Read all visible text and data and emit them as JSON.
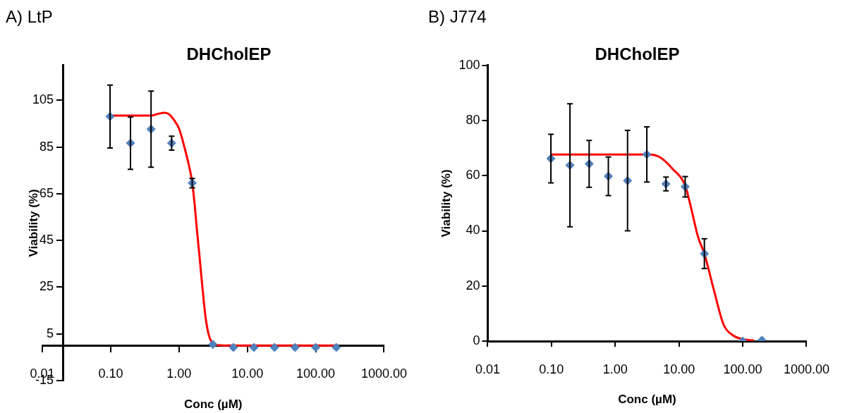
{
  "chart_data": [
    {
      "type": "scatter",
      "subtitle": "A) LtP",
      "title": "DHCholEP",
      "xlabel": "Conc (µM)",
      "ylabel": "Viability (%)",
      "log": "x",
      "grid": false,
      "legend": false,
      "xlim": [
        0.01,
        1000
      ],
      "xticks": [
        {
          "value": 0.01,
          "label": "0.01"
        },
        {
          "value": 0.1,
          "label": "0.10"
        },
        {
          "value": 1,
          "label": "1.00"
        },
        {
          "value": 10,
          "label": "10.00"
        },
        {
          "value": 100,
          "label": "100.00"
        },
        {
          "value": 1000,
          "label": "1000.00"
        }
      ],
      "ylim": [
        -15,
        120
      ],
      "yticks": [
        -15,
        5,
        25,
        45,
        65,
        85,
        105
      ],
      "x": [
        0.098,
        0.195,
        0.39,
        0.78,
        1.56,
        3.13,
        6.25,
        12.5,
        25,
        50,
        100,
        200
      ],
      "series": [
        {
          "color": "#4f81bd",
          "marker": "diamond",
          "values": [
            98.1,
            86.7,
            92.7,
            86.7,
            69.6,
            0.5,
            -0.8,
            -0.8,
            -0.8,
            -0.8,
            -0.8,
            -0.8
          ],
          "errors": [
            13.5,
            11.2,
            16.3,
            3,
            2,
            null,
            null,
            null,
            null,
            null,
            null,
            null
          ]
        },
        {
          "type": "line",
          "color": "#ff0000",
          "marker": "none",
          "x": [
            0.098,
            0.39,
            0.5,
            0.62,
            0.72,
            0.85,
            1.0,
            1.2,
            1.4,
            1.56,
            1.7,
            1.85,
            2.0,
            2.2,
            2.45,
            2.7,
            3.0,
            3.5,
            5,
            200
          ],
          "values": [
            98.5,
            98.5,
            99.3,
            99.7,
            99,
            96.5,
            93,
            85,
            77,
            70,
            60,
            48,
            38,
            25,
            12,
            5,
            1.5,
            0.3,
            0,
            0
          ]
        }
      ]
    },
    {
      "type": "scatter",
      "subtitle": "B) J774",
      "title": "DHCholEP",
      "xlabel": "Conc (µM)",
      "ylabel": "Viability (%)",
      "log": "x",
      "grid": false,
      "legend": false,
      "xlim": [
        0.01,
        1000
      ],
      "xticks": [
        {
          "value": 0.01,
          "label": "0.01"
        },
        {
          "value": 0.1,
          "label": "0.10"
        },
        {
          "value": 1,
          "label": "1.00"
        },
        {
          "value": 10,
          "label": "10.00"
        },
        {
          "value": 100,
          "label": "100.00"
        },
        {
          "value": 1000,
          "label": "1000.00"
        }
      ],
      "ylim": [
        0,
        100
      ],
      "yticks": [
        0,
        20,
        40,
        60,
        80,
        100
      ],
      "x": [
        0.098,
        0.195,
        0.39,
        0.78,
        1.56,
        3.13,
        6.25,
        12.5,
        25,
        50,
        100,
        200
      ],
      "series": [
        {
          "color": "#4f81bd",
          "marker": "diamond",
          "values": [
            66.2,
            63.8,
            64.3,
            59.8,
            58.2,
            67.7,
            57.0,
            56.0,
            31.7,
            null,
            0,
            0.3
          ],
          "errors": [
            8.8,
            22.3,
            8.5,
            7,
            18.2,
            10,
            2.5,
            3.7,
            5.4,
            null,
            null,
            null
          ]
        },
        {
          "type": "line",
          "color": "#ff0000",
          "marker": "none",
          "x": [
            0.098,
            3.5,
            5,
            8,
            12.5,
            15,
            20,
            25,
            35,
            50,
            70,
            100,
            150
          ],
          "values": [
            67.7,
            67.7,
            66.7,
            62.4,
            56.4,
            49.6,
            37.6,
            31.7,
            18.8,
            6,
            2.1,
            0.7,
            0.2
          ]
        }
      ]
    }
  ]
}
